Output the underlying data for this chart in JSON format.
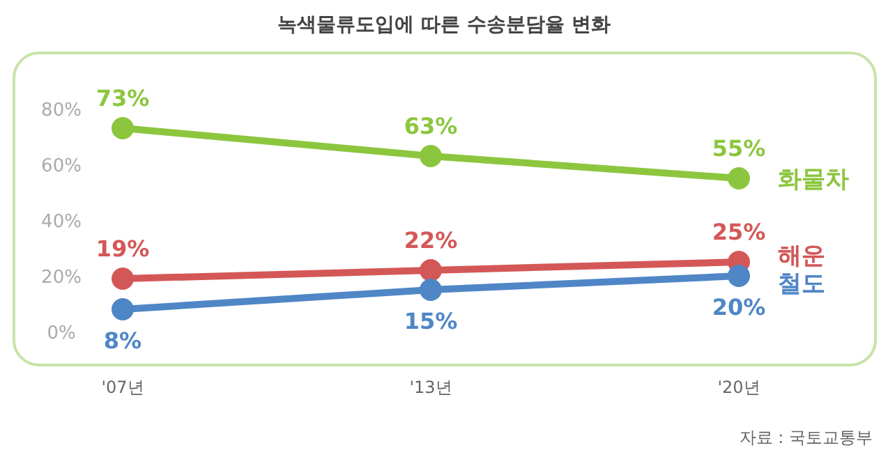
{
  "chart_data": {
    "type": "line",
    "title": "녹색물류도입에 따른 수송분담율 변화",
    "categories": [
      "'07년",
      "'13년",
      "'20년"
    ],
    "series": [
      {
        "name": "화물차",
        "color": "#8cc63e",
        "values": [
          73,
          63,
          55
        ],
        "value_labels": [
          "73%",
          "63%",
          "55%"
        ]
      },
      {
        "name": "해운",
        "color": "#d45757",
        "values": [
          19,
          22,
          25
        ],
        "value_labels": [
          "19%",
          "22%",
          "25%"
        ]
      },
      {
        "name": "철도",
        "color": "#4f86c6",
        "values": [
          8,
          15,
          20
        ],
        "value_labels": [
          "8%",
          "15%",
          "20%"
        ]
      }
    ],
    "ylim": [
      -12,
      100
    ],
    "yticks": [
      {
        "value": 0,
        "label": "0%"
      },
      {
        "value": 20,
        "label": "20%"
      },
      {
        "value": 40,
        "label": "40%"
      },
      {
        "value": 60,
        "label": "60%"
      },
      {
        "value": 80,
        "label": "80%"
      }
    ],
    "grid": false,
    "legend": "right",
    "marker": "circle",
    "line_style": "solid",
    "annotations": [
      "자료 : 국토교통부"
    ]
  }
}
